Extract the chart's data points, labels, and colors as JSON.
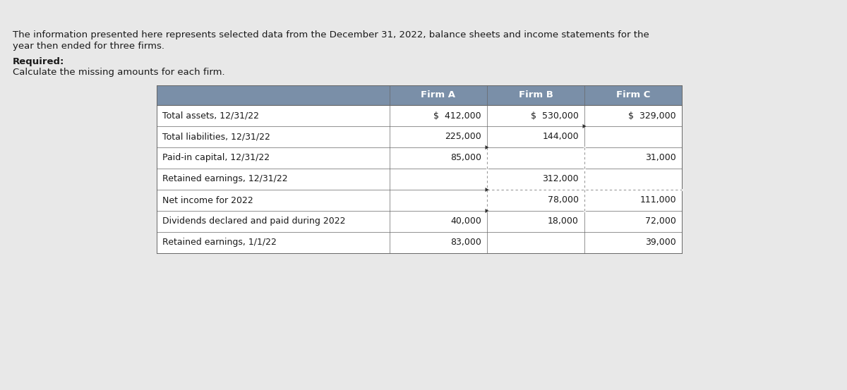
{
  "bg_color": "#e8e8e8",
  "intro_text_line1": "The information presented here represents selected data from the December 31, 2022, balance sheets and income statements for the",
  "intro_text_line2": "year then ended for three firms.",
  "required_label": "Required:",
  "required_text": "Calculate the missing amounts for each firm.",
  "header_bg": "#7a8fa8",
  "header_labels": [
    "",
    "Firm A",
    "Firm B",
    "Firm C"
  ],
  "rows": [
    [
      "Total assets, 12/31/22",
      "$  412,000",
      "$  530,000",
      "$  329,000"
    ],
    [
      "Total liabilities, 12/31/22",
      "225,000",
      "144,000",
      ""
    ],
    [
      "Paid-in capital, 12/31/22",
      "85,000",
      "",
      "31,000"
    ],
    [
      "Retained earnings, 12/31/22",
      "",
      "312,000",
      ""
    ],
    [
      "Net income for 2022",
      "",
      "78,000",
      "111,000"
    ],
    [
      "Dividends declared and paid during 2022",
      "40,000",
      "18,000",
      "72,000"
    ],
    [
      "Retained earnings, 1/1/22",
      "83,000",
      "",
      "39,000"
    ]
  ],
  "text_color": "#1a1a1a",
  "font_size": 9.5,
  "row_label_font_size": 9.5,
  "header_font_size": 9.5
}
